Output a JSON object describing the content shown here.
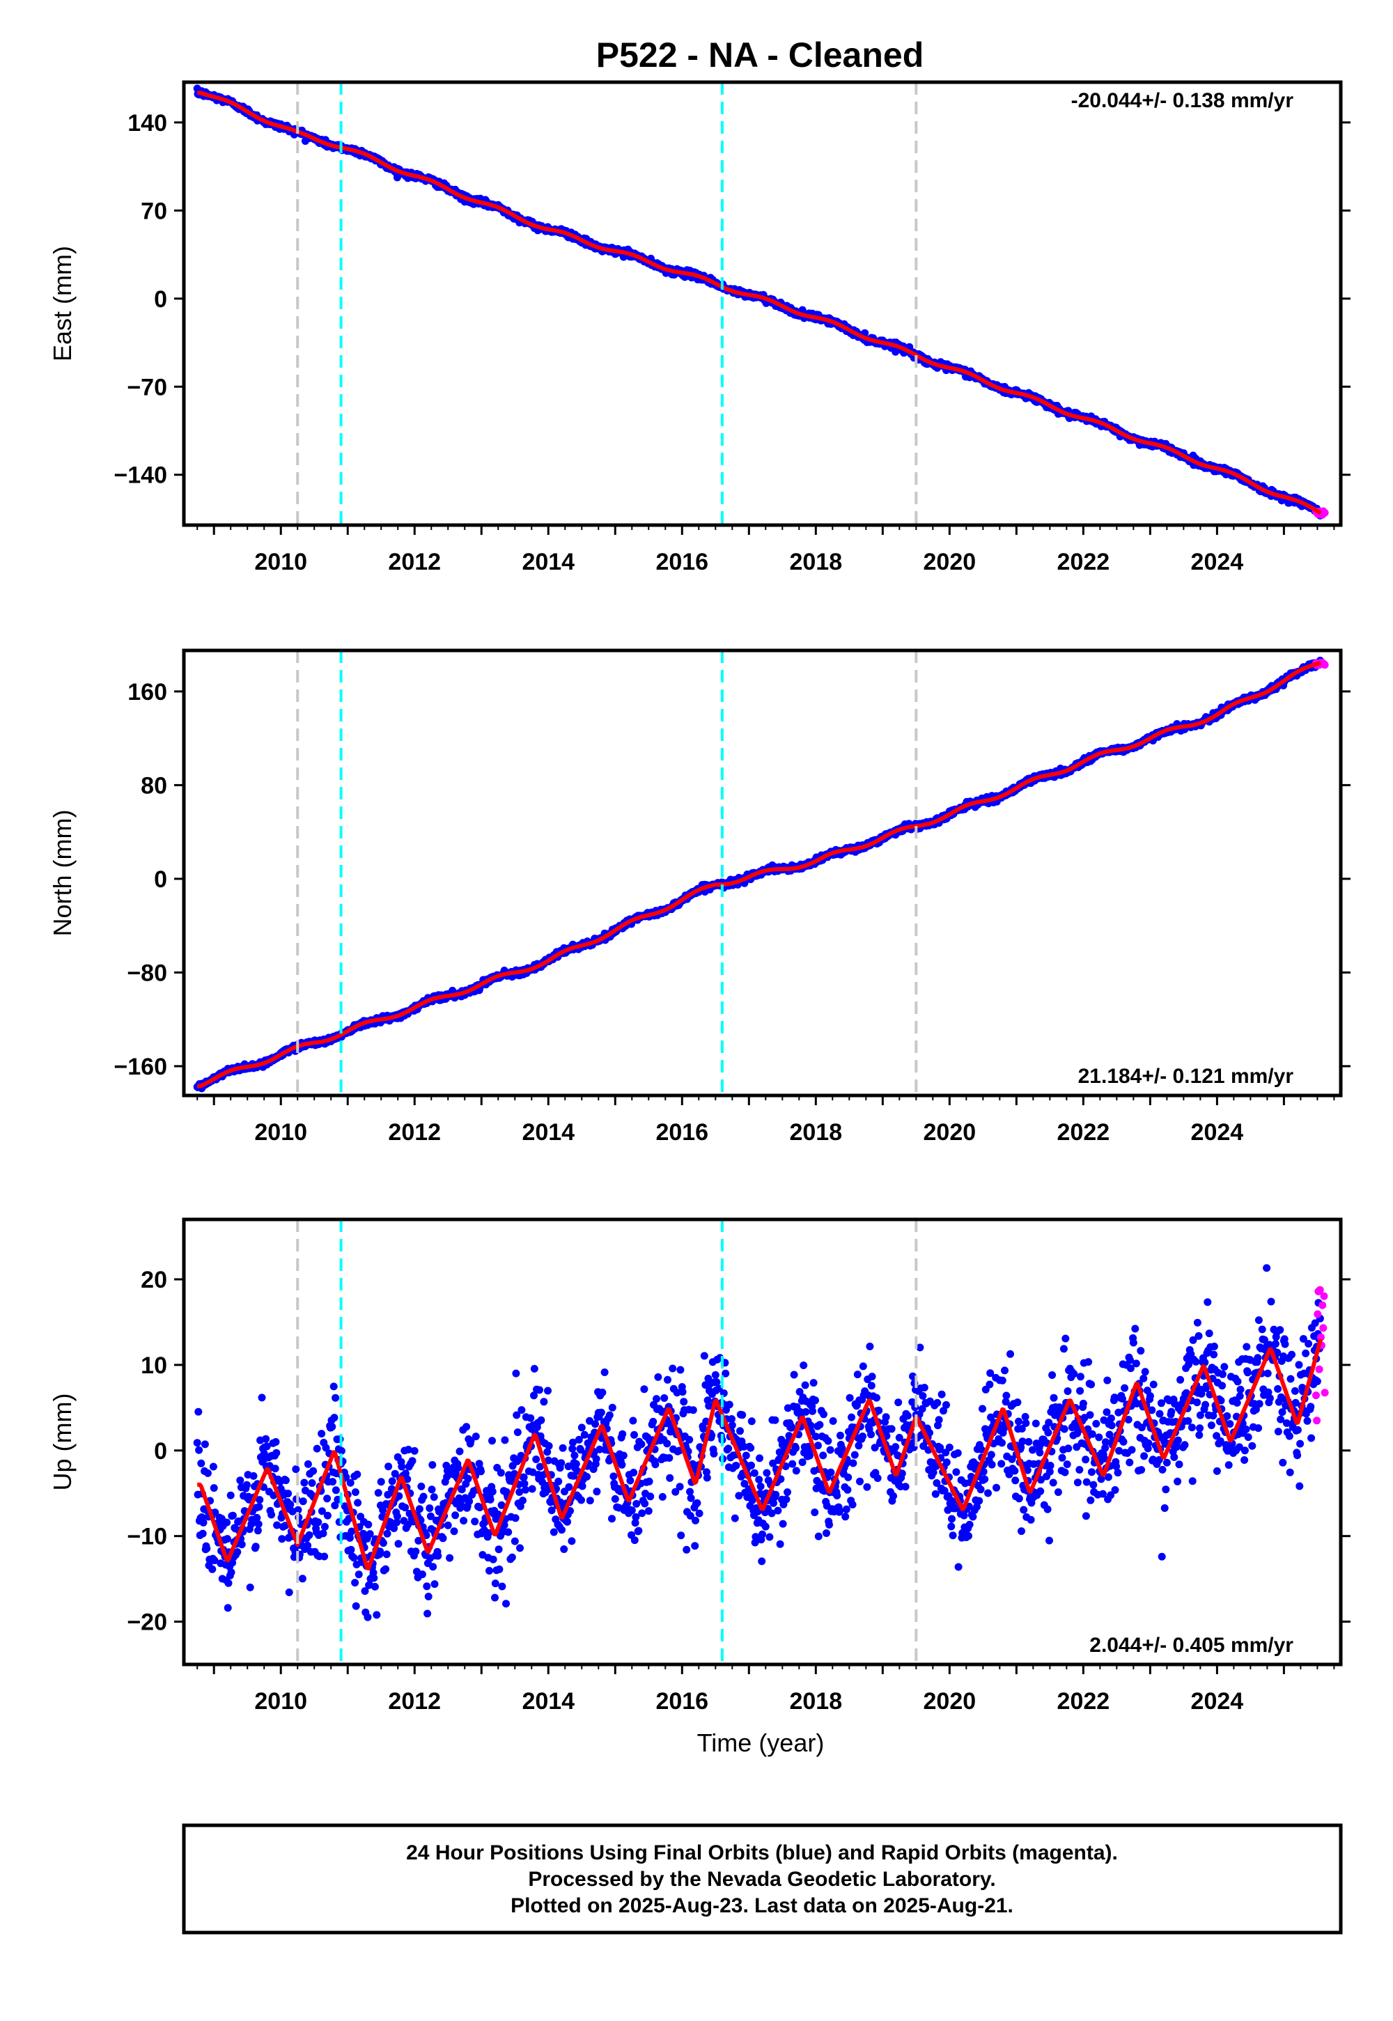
{
  "title": "P522  - NA - Cleaned",
  "xlabel": "Time (year)",
  "footer": {
    "line1": "24 Hour Positions Using Final Orbits (blue) and Rapid Orbits (magenta).",
    "line2": "Processed by the Nevada Geodetic Laboratory.",
    "line3": "Plotted on 2025-Aug-23. Last data on 2025-Aug-21."
  },
  "colors": {
    "final_orbits": "#0000ff",
    "rapid_orbits": "#ff00ff",
    "model_fit": "#ff0000",
    "equipment_change_line": "#c8c8c8",
    "earthquake_line": "#00ffff",
    "frame": "#000000"
  },
  "chart_data": [
    {
      "type": "scatter",
      "component": "East",
      "ylabel": "East (mm)",
      "rate_text": "-20.044+/- 0.138 mm/yr",
      "xlim": [
        2008.55,
        2025.85
      ],
      "ylim": [
        -180,
        172
      ],
      "xticks": [
        "2010",
        "2012",
        "2014",
        "2016",
        "2018",
        "2020",
        "2022",
        "2024"
      ],
      "yticks": [
        "140",
        "70",
        "0",
        "−70",
        "−140"
      ],
      "ytick_values": [
        140,
        70,
        0,
        -70,
        -140
      ],
      "vertical_lines": {
        "gray": [
          2010.25,
          2019.5
        ],
        "cyan": [
          2010.9,
          2016.6
        ]
      },
      "trend": {
        "rate": -20.044,
        "offset": 10,
        "ref_year": 2016.5,
        "seasonal_amplitude": 1.5
      },
      "noise_mm": 1.8,
      "data_range": [
        2008.75,
        2025.55
      ],
      "rapid_range": [
        2025.48,
        2025.62
      ],
      "series": [
        {
          "values": [
            [
              2008.8,
              165
            ],
            [
              2010.25,
              131
            ],
            [
              2010.9,
              121
            ],
            [
              2014.0,
              55
            ],
            [
              2016.5,
              12
            ],
            [
              2018.0,
              -15
            ],
            [
              2020.0,
              -55
            ],
            [
              2022.0,
              -95
            ],
            [
              2024.0,
              -135
            ],
            [
              2025.55,
              -170
            ]
          ]
        }
      ]
    },
    {
      "type": "scatter",
      "component": "North",
      "ylabel": "North (mm)",
      "rate_text": "21.184+/- 0.121 mm/yr",
      "xlim": [
        2008.55,
        2025.85
      ],
      "ylim": [
        -185,
        195
      ],
      "xticks": [
        "2010",
        "2012",
        "2014",
        "2016",
        "2018",
        "2020",
        "2022",
        "2024"
      ],
      "yticks": [
        "160",
        "80",
        "0",
        "−80",
        "−160"
      ],
      "ytick_values": [
        160,
        80,
        0,
        -80,
        -160
      ],
      "vertical_lines": {
        "gray": [
          2010.25,
          2019.5
        ],
        "cyan": [
          2010.9,
          2016.6
        ]
      },
      "trend": {
        "rate": 21.184,
        "offset": -5,
        "ref_year": 2016.5,
        "seasonal_amplitude": 2.0
      },
      "noise_mm": 1.8,
      "data_range": [
        2008.75,
        2025.55
      ],
      "rapid_range": [
        2025.48,
        2025.62
      ],
      "series": [
        {
          "values": [
            [
              2008.8,
              -175
            ],
            [
              2010.25,
              -145
            ],
            [
              2012.0,
              -110
            ],
            [
              2014.0,
              -70
            ],
            [
              2016.5,
              -5
            ],
            [
              2018.0,
              15
            ],
            [
              2020.0,
              55
            ],
            [
              2022.0,
              100
            ],
            [
              2024.0,
              140
            ],
            [
              2025.55,
              185
            ]
          ]
        }
      ]
    },
    {
      "type": "scatter",
      "component": "Up",
      "ylabel": "Up (mm)",
      "rate_text": "2.044+/- 0.405 mm/yr",
      "xlim": [
        2008.55,
        2025.85
      ],
      "ylim": [
        -25,
        27
      ],
      "xticks": [
        "2010",
        "2012",
        "2014",
        "2016",
        "2018",
        "2020",
        "2022",
        "2024"
      ],
      "yticks": [
        "20",
        "10",
        "0",
        "−10",
        "−20"
      ],
      "ytick_values": [
        20,
        10,
        0,
        -10,
        -20
      ],
      "vertical_lines": {
        "gray": [
          2010.25,
          2019.5
        ],
        "cyan": [
          2010.9,
          2016.6
        ]
      },
      "trend": {
        "rate": 2.044,
        "offset": 0,
        "ref_year": 2016.5,
        "seasonal_amplitude": 5.5
      },
      "noise_mm": 3.5,
      "data_range": [
        2008.75,
        2025.55
      ],
      "rapid_range": [
        2025.48,
        2025.62
      ],
      "series": [
        {
          "values": [
            [
              2008.8,
              -4
            ],
            [
              2009.2,
              -13
            ],
            [
              2009.8,
              -2
            ],
            [
              2010.25,
              -11
            ],
            [
              2010.8,
              0
            ],
            [
              2011.3,
              -14
            ],
            [
              2011.8,
              -3
            ],
            [
              2012.2,
              -12
            ],
            [
              2012.8,
              -1
            ],
            [
              2013.2,
              -10
            ],
            [
              2013.8,
              2
            ],
            [
              2014.2,
              -8
            ],
            [
              2014.8,
              3
            ],
            [
              2015.2,
              -6
            ],
            [
              2015.8,
              5
            ],
            [
              2016.2,
              -4
            ],
            [
              2016.5,
              6
            ],
            [
              2017.2,
              -7
            ],
            [
              2017.8,
              4
            ],
            [
              2018.2,
              -5
            ],
            [
              2018.8,
              6
            ],
            [
              2019.2,
              -3
            ],
            [
              2019.5,
              4
            ],
            [
              2020.2,
              -7
            ],
            [
              2020.8,
              5
            ],
            [
              2021.2,
              -5
            ],
            [
              2021.8,
              6
            ],
            [
              2022.3,
              -3
            ],
            [
              2022.8,
              8
            ],
            [
              2023.2,
              -1
            ],
            [
              2023.8,
              10
            ],
            [
              2024.2,
              1
            ],
            [
              2024.8,
              12
            ],
            [
              2025.2,
              3
            ],
            [
              2025.55,
              13
            ]
          ]
        }
      ]
    }
  ]
}
